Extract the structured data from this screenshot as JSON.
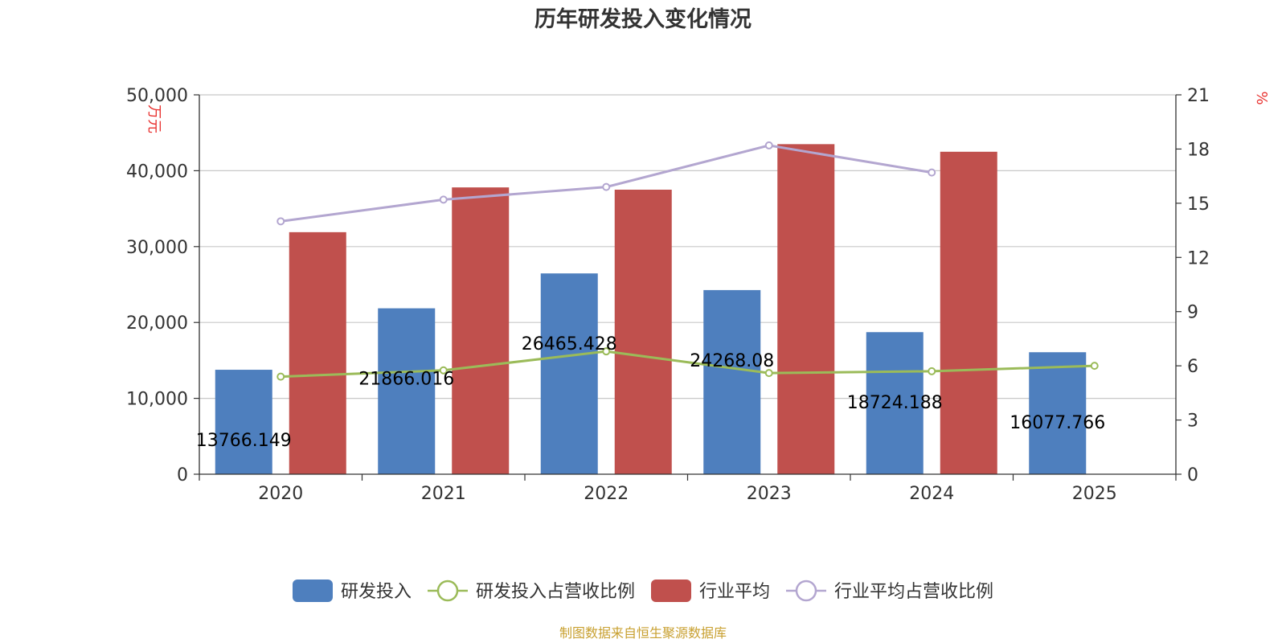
{
  "chart_data": {
    "type": "bar",
    "title": "历年研发投入变化情况",
    "categories": [
      "2020",
      "2021",
      "2022",
      "2023",
      "2024",
      "2025"
    ],
    "y_left": {
      "unit": "万元",
      "ylim": [
        0,
        50000
      ],
      "ticks": [
        "0",
        "10,000",
        "20,000",
        "30,000",
        "40,000",
        "50,000"
      ]
    },
    "y_right": {
      "unit": "%",
      "ylim": [
        0,
        21
      ],
      "ticks": [
        "0",
        "3",
        "6",
        "9",
        "12",
        "15",
        "18",
        "21"
      ]
    },
    "series": [
      {
        "name": "研发投入",
        "type": "bar",
        "axis": "left",
        "color": "#4e7fbe",
        "values": [
          13766.149,
          21866.016,
          26465.428,
          24268.08,
          18724.188,
          16077.766
        ],
        "labels": [
          "13766.149",
          "21866.016",
          "26465.428",
          "24268.08",
          "18724.188",
          "16077.766"
        ]
      },
      {
        "name": "研发投入占营收比例",
        "type": "line",
        "axis": "right",
        "color": "#9bbb59",
        "values": [
          5.4,
          5.75,
          6.8,
          5.6,
          5.7,
          6.0
        ]
      },
      {
        "name": "行业平均",
        "type": "bar",
        "axis": "left",
        "color": "#c0504d",
        "values": [
          31900,
          37800,
          37500,
          43500,
          42500,
          null
        ]
      },
      {
        "name": "行业平均占营收比例",
        "type": "line",
        "axis": "right",
        "color": "#b3a6d0",
        "values": [
          14.0,
          15.2,
          15.9,
          18.2,
          16.7,
          null
        ]
      }
    ],
    "grid": true,
    "legend_position": "bottom"
  },
  "source_text": "制图数据来自恒生聚源数据库"
}
